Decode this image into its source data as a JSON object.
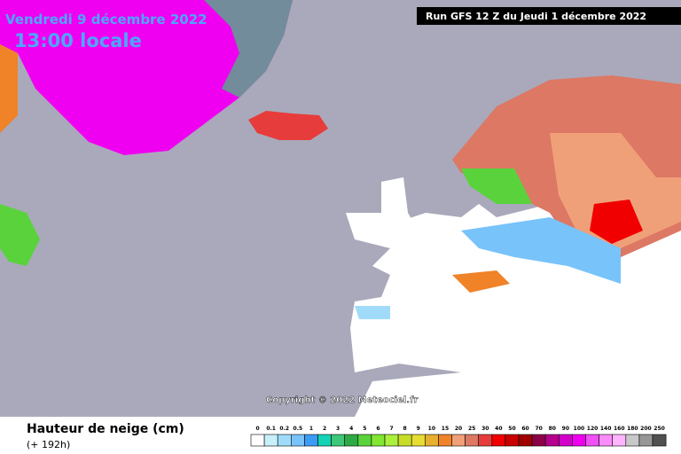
{
  "header": {
    "date": "Vendredi 9 décembre 2022",
    "time": "13:00 locale",
    "run": "Run GFS 12 Z du Jeudi 1 décembre 2022"
  },
  "copyright": "Copyright © 2022 Meteociel.fr",
  "footer": {
    "title": "Hauteur de neige (cm)",
    "subtitle": "(+ 192h)"
  },
  "legend": [
    {
      "label": "0",
      "color": "#ffffff"
    },
    {
      "label": "0.1",
      "color": "#c8f0fa"
    },
    {
      "label": "0.2",
      "color": "#a0dcfa"
    },
    {
      "label": "0.5",
      "color": "#78c3fa"
    },
    {
      "label": "1",
      "color": "#3c9bf5"
    },
    {
      "label": "2",
      "color": "#14d2b4"
    },
    {
      "label": "3",
      "color": "#3cc878"
    },
    {
      "label": "4",
      "color": "#2daa46"
    },
    {
      "label": "5",
      "color": "#5ad23c"
    },
    {
      "label": "6",
      "color": "#82e632"
    },
    {
      "label": "7",
      "color": "#aaf03c"
    },
    {
      "label": "8",
      "color": "#c8dc28"
    },
    {
      "label": "9",
      "color": "#e6dc32"
    },
    {
      "label": "10",
      "color": "#e6af2d"
    },
    {
      "label": "15",
      "color": "#f08228"
    },
    {
      "label": "20",
      "color": "#f0a078"
    },
    {
      "label": "25",
      "color": "#dc7864"
    },
    {
      "label": "30",
      "color": "#e63c3c"
    },
    {
      "label": "40",
      "color": "#f00000"
    },
    {
      "label": "50",
      "color": "#c80000"
    },
    {
      "label": "60",
      "color": "#a00000"
    },
    {
      "label": "70",
      "color": "#8c0046"
    },
    {
      "label": "80",
      "color": "#b4008c"
    },
    {
      "label": "90",
      "color": "#d200c8"
    },
    {
      "label": "100",
      "color": "#f000f0"
    },
    {
      "label": "120",
      "color": "#f050f5"
    },
    {
      "label": "140",
      "color": "#fa8cfa"
    },
    {
      "label": "160",
      "color": "#ffb4ff"
    },
    {
      "label": "180",
      "color": "#c8c8c8"
    },
    {
      "label": "200",
      "color": "#969696"
    },
    {
      "label": "250",
      "color": "#505050"
    }
  ]
}
